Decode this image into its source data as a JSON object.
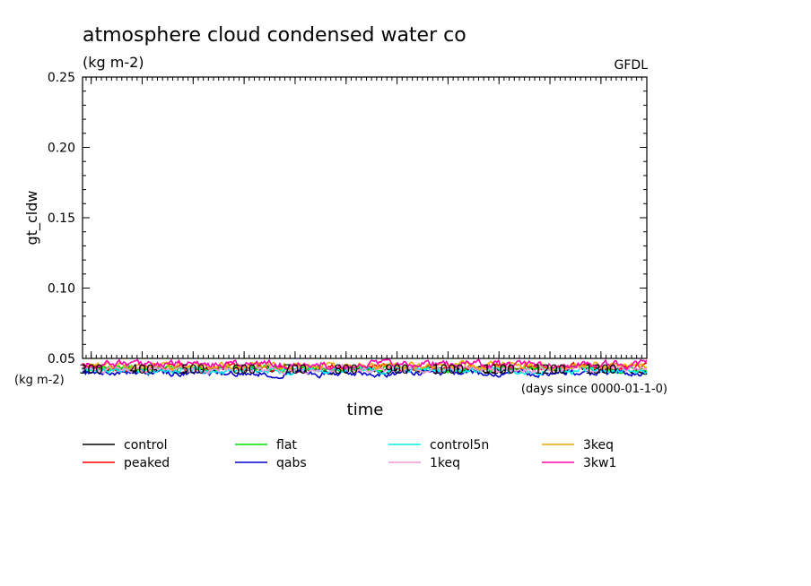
{
  "chart_data": {
    "type": "line",
    "title": "atmosphere cloud condensed water co",
    "subtitle": "(kg m-2)",
    "source": "GFDL",
    "ylabel": "gt_cldw",
    "xlabel": "time",
    "x_units_label": "(days since 0000-01-1-0)",
    "y_units_label": "(kg m-2)",
    "ylim": [
      0.05,
      0.25
    ],
    "xlim": [
      283,
      1390
    ],
    "yticks": [
      0.05,
      0.1,
      0.15,
      0.2,
      0.25
    ],
    "ytick_labels": [
      "0.05",
      "0.10",
      "0.15",
      "0.20",
      "0.25"
    ],
    "xticks": [
      300,
      400,
      500,
      600,
      700,
      800,
      900,
      1000,
      1100,
      1200,
      1300
    ],
    "xtick_labels": [
      "300",
      "400",
      "500",
      "600",
      "700",
      "800",
      "900",
      "1000",
      "1100",
      "1200",
      "1300"
    ],
    "grid": false,
    "legend_position": "bottom",
    "series": [
      {
        "name": "control",
        "color": "#000000",
        "mean": 0.042,
        "spread": 0.0022
      },
      {
        "name": "peaked",
        "color": "#ff0000",
        "mean": 0.0435,
        "spread": 0.0024
      },
      {
        "name": "flat",
        "color": "#00e000",
        "mean": 0.0428,
        "spread": 0.0022
      },
      {
        "name": "qabs",
        "color": "#0000cc",
        "mean": 0.0398,
        "spread": 0.0022
      },
      {
        "name": "control5n",
        "color": "#00eeee",
        "mean": 0.0415,
        "spread": 0.0022
      },
      {
        "name": "1keq",
        "color": "#ee99dd",
        "mean": 0.0425,
        "spread": 0.0022
      },
      {
        "name": "3keq",
        "color": "#eeaa00",
        "mean": 0.0448,
        "spread": 0.0024
      },
      {
        "name": "3kw1",
        "color": "#ff00aa",
        "mean": 0.0458,
        "spread": 0.0026
      }
    ]
  }
}
